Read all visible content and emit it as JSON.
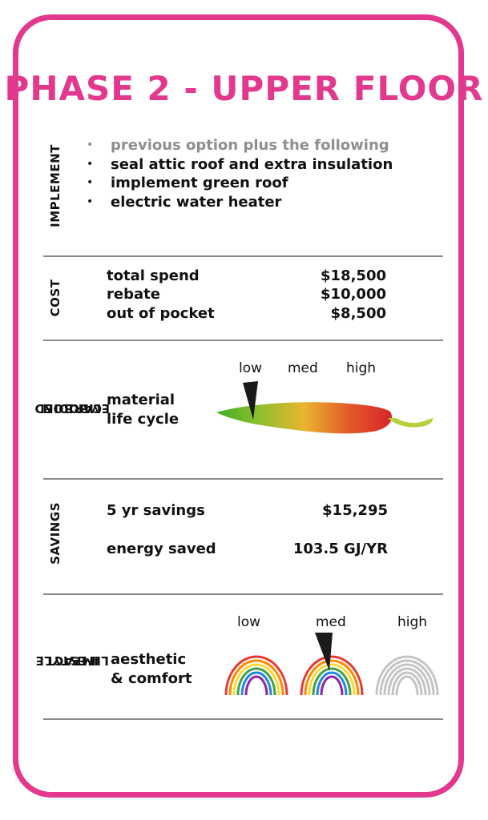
{
  "title": "PHASE 2 - UPPER FLOOR",
  "colors": {
    "accent": "#e2398f",
    "muted": "#8e8e8e",
    "divider": "#8a8a8a"
  },
  "implement": {
    "heading": "IMPLEMENT",
    "items": [
      "previous option plus the following",
      "seal attic roof and extra insulation",
      "implement green roof",
      "electric water heater"
    ]
  },
  "cost": {
    "heading": "COST",
    "rows": [
      {
        "label": "total spend",
        "value": "$18,500"
      },
      {
        "label": "rebate",
        "value": "$10,000"
      },
      {
        "label": "out of pocket",
        "value": "$8,500"
      }
    ]
  },
  "embodied_carbon": {
    "heading_line1": "EMBODIED",
    "heading_line2": "CARBON",
    "label_line1": "material",
    "label_line2": "life cycle",
    "scale": [
      "low",
      "med",
      "high"
    ],
    "icon": "chili-pepper-icon",
    "level": "low"
  },
  "savings": {
    "heading": "SAVINGS",
    "rows": [
      {
        "label": "5 yr savings",
        "value": "$15,295"
      },
      {
        "label": "energy saved",
        "value": "103.5 GJ/YR"
      }
    ]
  },
  "lifestyle": {
    "heading_line1": "LIFESTYLE",
    "heading_line2": "IMPACT",
    "label_line1": "aesthetic",
    "label_line2": "& comfort",
    "scale": [
      "low",
      "med",
      "high"
    ],
    "icon": "rainbow-icon",
    "level": "med"
  }
}
